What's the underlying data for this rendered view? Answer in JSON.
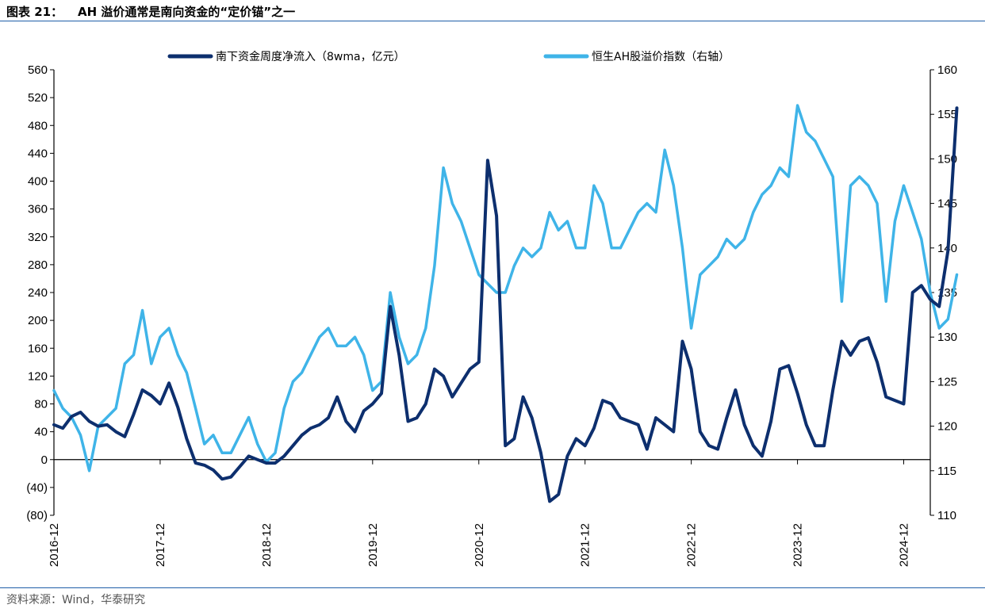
{
  "header": {
    "figure_number": "图表 21：",
    "title": "AH 溢价通常是南向资金的“定价锚”之一"
  },
  "footer": {
    "source": "资料来源：Wind，华泰研究"
  },
  "chart_data": {
    "type": "line",
    "title": "AH 溢价通常是南向资金的“定价锚”之一",
    "legend_position": "top",
    "grid": false,
    "x_range": [
      "2016-12",
      "2025-03"
    ],
    "x_ticks": [
      "2016-12",
      "2017-12",
      "2018-12",
      "2019-12",
      "2020-12",
      "2021-12",
      "2022-12",
      "2023-12",
      "2024-12"
    ],
    "y_left": {
      "range": [
        -80,
        560
      ],
      "ticks": [
        560,
        520,
        480,
        440,
        400,
        360,
        320,
        280,
        240,
        200,
        160,
        120,
        80,
        40,
        0,
        -40,
        -80
      ],
      "tick_labels": [
        "560",
        "520",
        "480",
        "440",
        "400",
        "360",
        "320",
        "280",
        "240",
        "200",
        "160",
        "120",
        "80",
        "40",
        "0",
        "(40)",
        "(80)"
      ]
    },
    "y_right": {
      "range": [
        110,
        160
      ],
      "ticks": [
        160,
        155,
        150,
        145,
        140,
        135,
        130,
        125,
        120,
        115,
        110
      ],
      "tick_labels": [
        "160",
        "155",
        "150",
        "145",
        "140",
        "135",
        "130",
        "125",
        "120",
        "115",
        "110"
      ]
    },
    "series": [
      {
        "name": "南下资金周度净流入（8wma，亿元）",
        "axis": "left",
        "color": "#0d2f6e",
        "points": [
          [
            "2016-12",
            50
          ],
          [
            "2017-01",
            45
          ],
          [
            "2017-02",
            62
          ],
          [
            "2017-03",
            68
          ],
          [
            "2017-04",
            55
          ],
          [
            "2017-05",
            48
          ],
          [
            "2017-06",
            50
          ],
          [
            "2017-07",
            40
          ],
          [
            "2017-08",
            33
          ],
          [
            "2017-09",
            65
          ],
          [
            "2017-10",
            100
          ],
          [
            "2017-11",
            92
          ],
          [
            "2017-12",
            80
          ],
          [
            "2018-01",
            110
          ],
          [
            "2018-02",
            75
          ],
          [
            "2018-03",
            30
          ],
          [
            "2018-04",
            -5
          ],
          [
            "2018-05",
            -8
          ],
          [
            "2018-06",
            -15
          ],
          [
            "2018-07",
            -28
          ],
          [
            "2018-08",
            -25
          ],
          [
            "2018-09",
            -10
          ],
          [
            "2018-10",
            5
          ],
          [
            "2018-11",
            0
          ],
          [
            "2018-12",
            -5
          ],
          [
            "2019-01",
            -5
          ],
          [
            "2019-02",
            5
          ],
          [
            "2019-03",
            20
          ],
          [
            "2019-04",
            35
          ],
          [
            "2019-05",
            45
          ],
          [
            "2019-06",
            50
          ],
          [
            "2019-07",
            60
          ],
          [
            "2019-08",
            90
          ],
          [
            "2019-09",
            55
          ],
          [
            "2019-10",
            40
          ],
          [
            "2019-11",
            70
          ],
          [
            "2019-12",
            80
          ],
          [
            "2020-01",
            95
          ],
          [
            "2020-02",
            220
          ],
          [
            "2020-03",
            150
          ],
          [
            "2020-04",
            55
          ],
          [
            "2020-05",
            60
          ],
          [
            "2020-06",
            80
          ],
          [
            "2020-07",
            130
          ],
          [
            "2020-08",
            120
          ],
          [
            "2020-09",
            90
          ],
          [
            "2020-10",
            110
          ],
          [
            "2020-11",
            130
          ],
          [
            "2020-12",
            140
          ],
          [
            "2021-01",
            430
          ],
          [
            "2021-02",
            350
          ],
          [
            "2021-03",
            20
          ],
          [
            "2021-04",
            30
          ],
          [
            "2021-05",
            90
          ],
          [
            "2021-06",
            60
          ],
          [
            "2021-07",
            10
          ],
          [
            "2021-08",
            -60
          ],
          [
            "2021-09",
            -50
          ],
          [
            "2021-10",
            5
          ],
          [
            "2021-11",
            30
          ],
          [
            "2021-12",
            20
          ],
          [
            "2022-01",
            45
          ],
          [
            "2022-02",
            85
          ],
          [
            "2022-03",
            80
          ],
          [
            "2022-04",
            60
          ],
          [
            "2022-05",
            55
          ],
          [
            "2022-06",
            50
          ],
          [
            "2022-07",
            15
          ],
          [
            "2022-08",
            60
          ],
          [
            "2022-09",
            50
          ],
          [
            "2022-10",
            40
          ],
          [
            "2022-11",
            170
          ],
          [
            "2022-12",
            130
          ],
          [
            "2023-01",
            40
          ],
          [
            "2023-02",
            20
          ],
          [
            "2023-03",
            15
          ],
          [
            "2023-04",
            60
          ],
          [
            "2023-05",
            100
          ],
          [
            "2023-06",
            50
          ],
          [
            "2023-07",
            20
          ],
          [
            "2023-08",
            5
          ],
          [
            "2023-09",
            55
          ],
          [
            "2023-10",
            130
          ],
          [
            "2023-11",
            135
          ],
          [
            "2023-12",
            95
          ],
          [
            "2024-01",
            50
          ],
          [
            "2024-02",
            20
          ],
          [
            "2024-03",
            20
          ],
          [
            "2024-04",
            100
          ],
          [
            "2024-05",
            170
          ],
          [
            "2024-06",
            150
          ],
          [
            "2024-07",
            170
          ],
          [
            "2024-08",
            175
          ],
          [
            "2024-09",
            140
          ],
          [
            "2024-10",
            90
          ],
          [
            "2024-11",
            85
          ],
          [
            "2024-12",
            80
          ],
          [
            "2025-01",
            240
          ],
          [
            "2025-02",
            250
          ],
          [
            "2025-03",
            230
          ],
          [
            "2025-04",
            220
          ],
          [
            "2025-05",
            300
          ],
          [
            "2025-06",
            505
          ]
        ]
      },
      {
        "name": "恒生AH股溢价指数（右轴）",
        "axis": "right",
        "color": "#3fb4e8",
        "points": [
          [
            "2016-12",
            124
          ],
          [
            "2017-01",
            122
          ],
          [
            "2017-02",
            121
          ],
          [
            "2017-03",
            119
          ],
          [
            "2017-04",
            115
          ],
          [
            "2017-05",
            120
          ],
          [
            "2017-06",
            121
          ],
          [
            "2017-07",
            122
          ],
          [
            "2017-08",
            127
          ],
          [
            "2017-09",
            128
          ],
          [
            "2017-10",
            133
          ],
          [
            "2017-11",
            127
          ],
          [
            "2017-12",
            130
          ],
          [
            "2018-01",
            131
          ],
          [
            "2018-02",
            128
          ],
          [
            "2018-03",
            126
          ],
          [
            "2018-04",
            122
          ],
          [
            "2018-05",
            118
          ],
          [
            "2018-06",
            119
          ],
          [
            "2018-07",
            117
          ],
          [
            "2018-08",
            117
          ],
          [
            "2018-09",
            119
          ],
          [
            "2018-10",
            121
          ],
          [
            "2018-11",
            118
          ],
          [
            "2018-12",
            116
          ],
          [
            "2019-01",
            117
          ],
          [
            "2019-02",
            122
          ],
          [
            "2019-03",
            125
          ],
          [
            "2019-04",
            126
          ],
          [
            "2019-05",
            128
          ],
          [
            "2019-06",
            130
          ],
          [
            "2019-07",
            131
          ],
          [
            "2019-08",
            129
          ],
          [
            "2019-09",
            129
          ],
          [
            "2019-10",
            130
          ],
          [
            "2019-11",
            128
          ],
          [
            "2019-12",
            124
          ],
          [
            "2020-01",
            125
          ],
          [
            "2020-02",
            135
          ],
          [
            "2020-03",
            130
          ],
          [
            "2020-04",
            127
          ],
          [
            "2020-05",
            128
          ],
          [
            "2020-06",
            131
          ],
          [
            "2020-07",
            138
          ],
          [
            "2020-08",
            149
          ],
          [
            "2020-09",
            145
          ],
          [
            "2020-10",
            143
          ],
          [
            "2020-11",
            140
          ],
          [
            "2020-12",
            137
          ],
          [
            "2021-01",
            136
          ],
          [
            "2021-02",
            135
          ],
          [
            "2021-03",
            135
          ],
          [
            "2021-04",
            138
          ],
          [
            "2021-05",
            140
          ],
          [
            "2021-06",
            139
          ],
          [
            "2021-07",
            140
          ],
          [
            "2021-08",
            144
          ],
          [
            "2021-09",
            142
          ],
          [
            "2021-10",
            143
          ],
          [
            "2021-11",
            140
          ],
          [
            "2021-12",
            140
          ],
          [
            "2022-01",
            147
          ],
          [
            "2022-02",
            145
          ],
          [
            "2022-03",
            140
          ],
          [
            "2022-04",
            140
          ],
          [
            "2022-05",
            142
          ],
          [
            "2022-06",
            144
          ],
          [
            "2022-07",
            145
          ],
          [
            "2022-08",
            144
          ],
          [
            "2022-09",
            151
          ],
          [
            "2022-10",
            147
          ],
          [
            "2022-11",
            140
          ],
          [
            "2022-12",
            131
          ],
          [
            "2023-01",
            137
          ],
          [
            "2023-02",
            138
          ],
          [
            "2023-03",
            139
          ],
          [
            "2023-04",
            141
          ],
          [
            "2023-05",
            140
          ],
          [
            "2023-06",
            141
          ],
          [
            "2023-07",
            144
          ],
          [
            "2023-08",
            146
          ],
          [
            "2023-09",
            147
          ],
          [
            "2023-10",
            149
          ],
          [
            "2023-11",
            148
          ],
          [
            "2023-12",
            156
          ],
          [
            "2024-01",
            153
          ],
          [
            "2024-02",
            152
          ],
          [
            "2024-03",
            150
          ],
          [
            "2024-04",
            148
          ],
          [
            "2024-05",
            134
          ],
          [
            "2024-06",
            147
          ],
          [
            "2024-07",
            148
          ],
          [
            "2024-08",
            147
          ],
          [
            "2024-09",
            145
          ],
          [
            "2024-10",
            134
          ],
          [
            "2024-11",
            143
          ],
          [
            "2024-12",
            147
          ],
          [
            "2025-01",
            144
          ],
          [
            "2025-02",
            141
          ],
          [
            "2025-03",
            135
          ],
          [
            "2025-04",
            131
          ],
          [
            "2025-05",
            132
          ],
          [
            "2025-06",
            137
          ]
        ]
      }
    ]
  }
}
